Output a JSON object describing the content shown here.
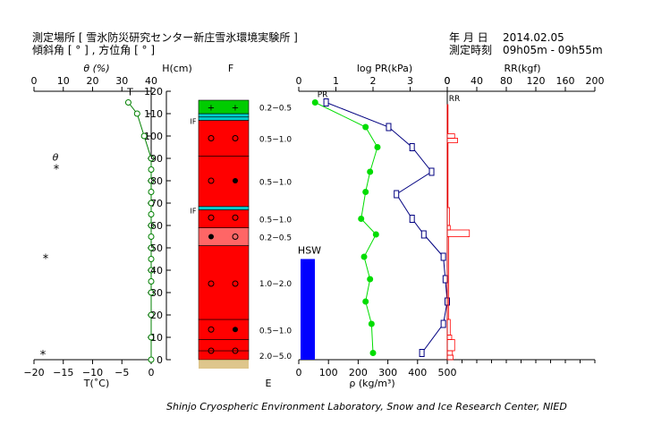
{
  "header": {
    "site_label": "測定場所 [ 雪氷防災研究センター新庄雪氷環境実験所 ]",
    "angle_label": "傾斜角 [ ° ] , 方位角 [ ° ]",
    "date_label": "年 月 日",
    "date_value": "2014.02.05",
    "time_label": "測定時刻",
    "time_value": "09h05m - 09h55m"
  },
  "footer": "Shinjo Cryospheric Environment Laboratory, Snow and Ice Research Center, NIED",
  "colors": {
    "temperature": "#008000",
    "density": "#00dd00",
    "pr": "#000080",
    "rr": "#ff0000",
    "hsw": "#0000ff",
    "snow_red": "#ff0000",
    "snow_pink": "#ff6666",
    "snow_green": "#00cc00",
    "ice_crust": "#00cccc",
    "ground": "#c8a040"
  },
  "chart_data": [
    {
      "type": "line",
      "name": "temperature-moisture",
      "title": "",
      "top_axis_label": "θ (%)",
      "top_ticks": [
        "0",
        "10",
        "20",
        "30",
        "40"
      ],
      "top_marker": "T",
      "bottom_axis_label": "T(˚C)",
      "bottom_ticks": [
        "−20",
        "−15",
        "−10",
        "−5",
        "0"
      ],
      "xlim": [
        -20,
        0
      ],
      "ylim": [
        0,
        120
      ],
      "series": [
        {
          "x": [
            -3.9,
            -2.4,
            -1.2,
            0,
            0,
            0,
            0,
            0,
            0,
            0,
            0,
            0,
            0,
            0,
            0,
            0,
            0,
            0,
            0
          ],
          "y": [
            115,
            110,
            100,
            90,
            85,
            80,
            75,
            70,
            65,
            60,
            55,
            50,
            45,
            40,
            35,
            30,
            20,
            10,
            0
          ]
        }
      ],
      "legend": [
        {
          "symbol": "θ",
          "marker": "*",
          "value": 85
        },
        {
          "marker": "*",
          "value": 45
        },
        {
          "marker": "*",
          "value": 2
        }
      ]
    },
    {
      "type": "table",
      "name": "snow-layers",
      "y_axis_label": "H(cm)",
      "y_ticks": [
        "0",
        "10",
        "20",
        "30",
        "40",
        "50",
        "60",
        "70",
        "80",
        "90",
        "100",
        "110",
        "120"
      ],
      "ylim": [
        0,
        120
      ],
      "top_label": "F",
      "bottom_label": "E",
      "layers": [
        {
          "bottom": 0,
          "top": 4,
          "color": "red",
          "grain": "2.0−5.0"
        },
        {
          "bottom": 4,
          "top": 9,
          "color": "red"
        },
        {
          "bottom": 9,
          "top": 18,
          "color": "red",
          "grain": "0.5−1.0"
        },
        {
          "bottom": 18,
          "top": 51,
          "color": "red",
          "grain": "1.0−2.0"
        },
        {
          "bottom": 51,
          "top": 59,
          "color": "pink",
          "grain": "0.2−0.5"
        },
        {
          "bottom": 59,
          "top": 67,
          "color": "red",
          "grain": "0.5−1.0"
        },
        {
          "bottom": 67,
          "top": 68.5,
          "color": "ice",
          "label": "IF"
        },
        {
          "bottom": 68.5,
          "top": 91,
          "color": "red",
          "grain": "0.5−1.0"
        },
        {
          "bottom": 91,
          "top": 107,
          "color": "red",
          "grain": "0.5−1.0"
        },
        {
          "bottom": 107,
          "top": 108.5,
          "color": "ice",
          "label": "IF"
        },
        {
          "bottom": 108.5,
          "top": 110,
          "color": "ice"
        },
        {
          "bottom": 110,
          "top": 116,
          "color": "green",
          "grain": "0.2−0.5"
        }
      ],
      "symbols": [
        {
          "h": 113,
          "left": "+",
          "right": "+"
        },
        {
          "h": 99,
          "left": "o",
          "right": "o"
        },
        {
          "h": 80,
          "left": "o",
          "right": "●"
        },
        {
          "h": 63.5,
          "left": "o",
          "right": "o"
        },
        {
          "h": 55,
          "left": "●",
          "right": "o"
        },
        {
          "h": 34,
          "left": "o",
          "right": "o"
        },
        {
          "h": 13.5,
          "left": "o",
          "right": "●"
        },
        {
          "h": 4,
          "left": "o",
          "right": "o"
        }
      ]
    },
    {
      "type": "line",
      "name": "density-pr",
      "bottom_axis_label": "ρ (kg/m³)",
      "bottom_ticks": [
        "0",
        "100",
        "200",
        "300",
        "400",
        "500"
      ],
      "xlim": [
        0,
        500
      ],
      "top_axis_label": "log PR(kPa)",
      "top_ticks": [
        "0",
        "1",
        "2",
        "3",
        "0"
      ],
      "pr_lim": [
        0,
        3.8
      ],
      "ylim": [
        0,
        120
      ],
      "hsw": {
        "label": "HSW",
        "value": 45,
        "unit": "cm"
      },
      "series": [
        {
          "name": "ρ",
          "x": [
            55,
            225,
            265,
            240,
            225,
            210,
            260,
            220,
            240,
            225,
            245,
            250
          ],
          "y": [
            115,
            104,
            95,
            84,
            75,
            63,
            56,
            46,
            36,
            26,
            16,
            3
          ]
        },
        {
          "name": "PR",
          "marker_label": "PR",
          "x": [
            0.7,
            2.3,
            2.9,
            3.4,
            2.5,
            2.9,
            3.2,
            3.7,
            3.75,
            3.8,
            3.7,
            3.15
          ],
          "y": [
            115,
            104,
            95,
            84,
            74,
            63,
            56,
            46,
            36,
            26,
            16,
            3
          ]
        }
      ]
    },
    {
      "type": "bar",
      "name": "rammsonde",
      "top_axis_label": "RR(kgf)",
      "top_ticks": [
        "0",
        "40",
        "80",
        "120",
        "160",
        "200"
      ],
      "marker_label": "RR",
      "xlim": [
        0,
        200
      ],
      "ylim": [
        0,
        120
      ],
      "bars": [
        {
          "bottom": 0,
          "top": 2,
          "value": 8
        },
        {
          "bottom": 2,
          "top": 4,
          "value": 7
        },
        {
          "bottom": 4,
          "top": 9,
          "value": 10
        },
        {
          "bottom": 9,
          "top": 11,
          "value": 6
        },
        {
          "bottom": 11,
          "top": 18,
          "value": 4
        },
        {
          "bottom": 18,
          "top": 55,
          "value": 2
        },
        {
          "bottom": 55,
          "top": 58,
          "value": 30
        },
        {
          "bottom": 58,
          "top": 60,
          "value": 4
        },
        {
          "bottom": 60,
          "top": 68,
          "value": 3
        },
        {
          "bottom": 68,
          "top": 97,
          "value": 1
        },
        {
          "bottom": 97,
          "top": 99,
          "value": 14
        },
        {
          "bottom": 99,
          "top": 101,
          "value": 10
        },
        {
          "bottom": 101,
          "top": 114,
          "value": 1
        }
      ]
    }
  ]
}
